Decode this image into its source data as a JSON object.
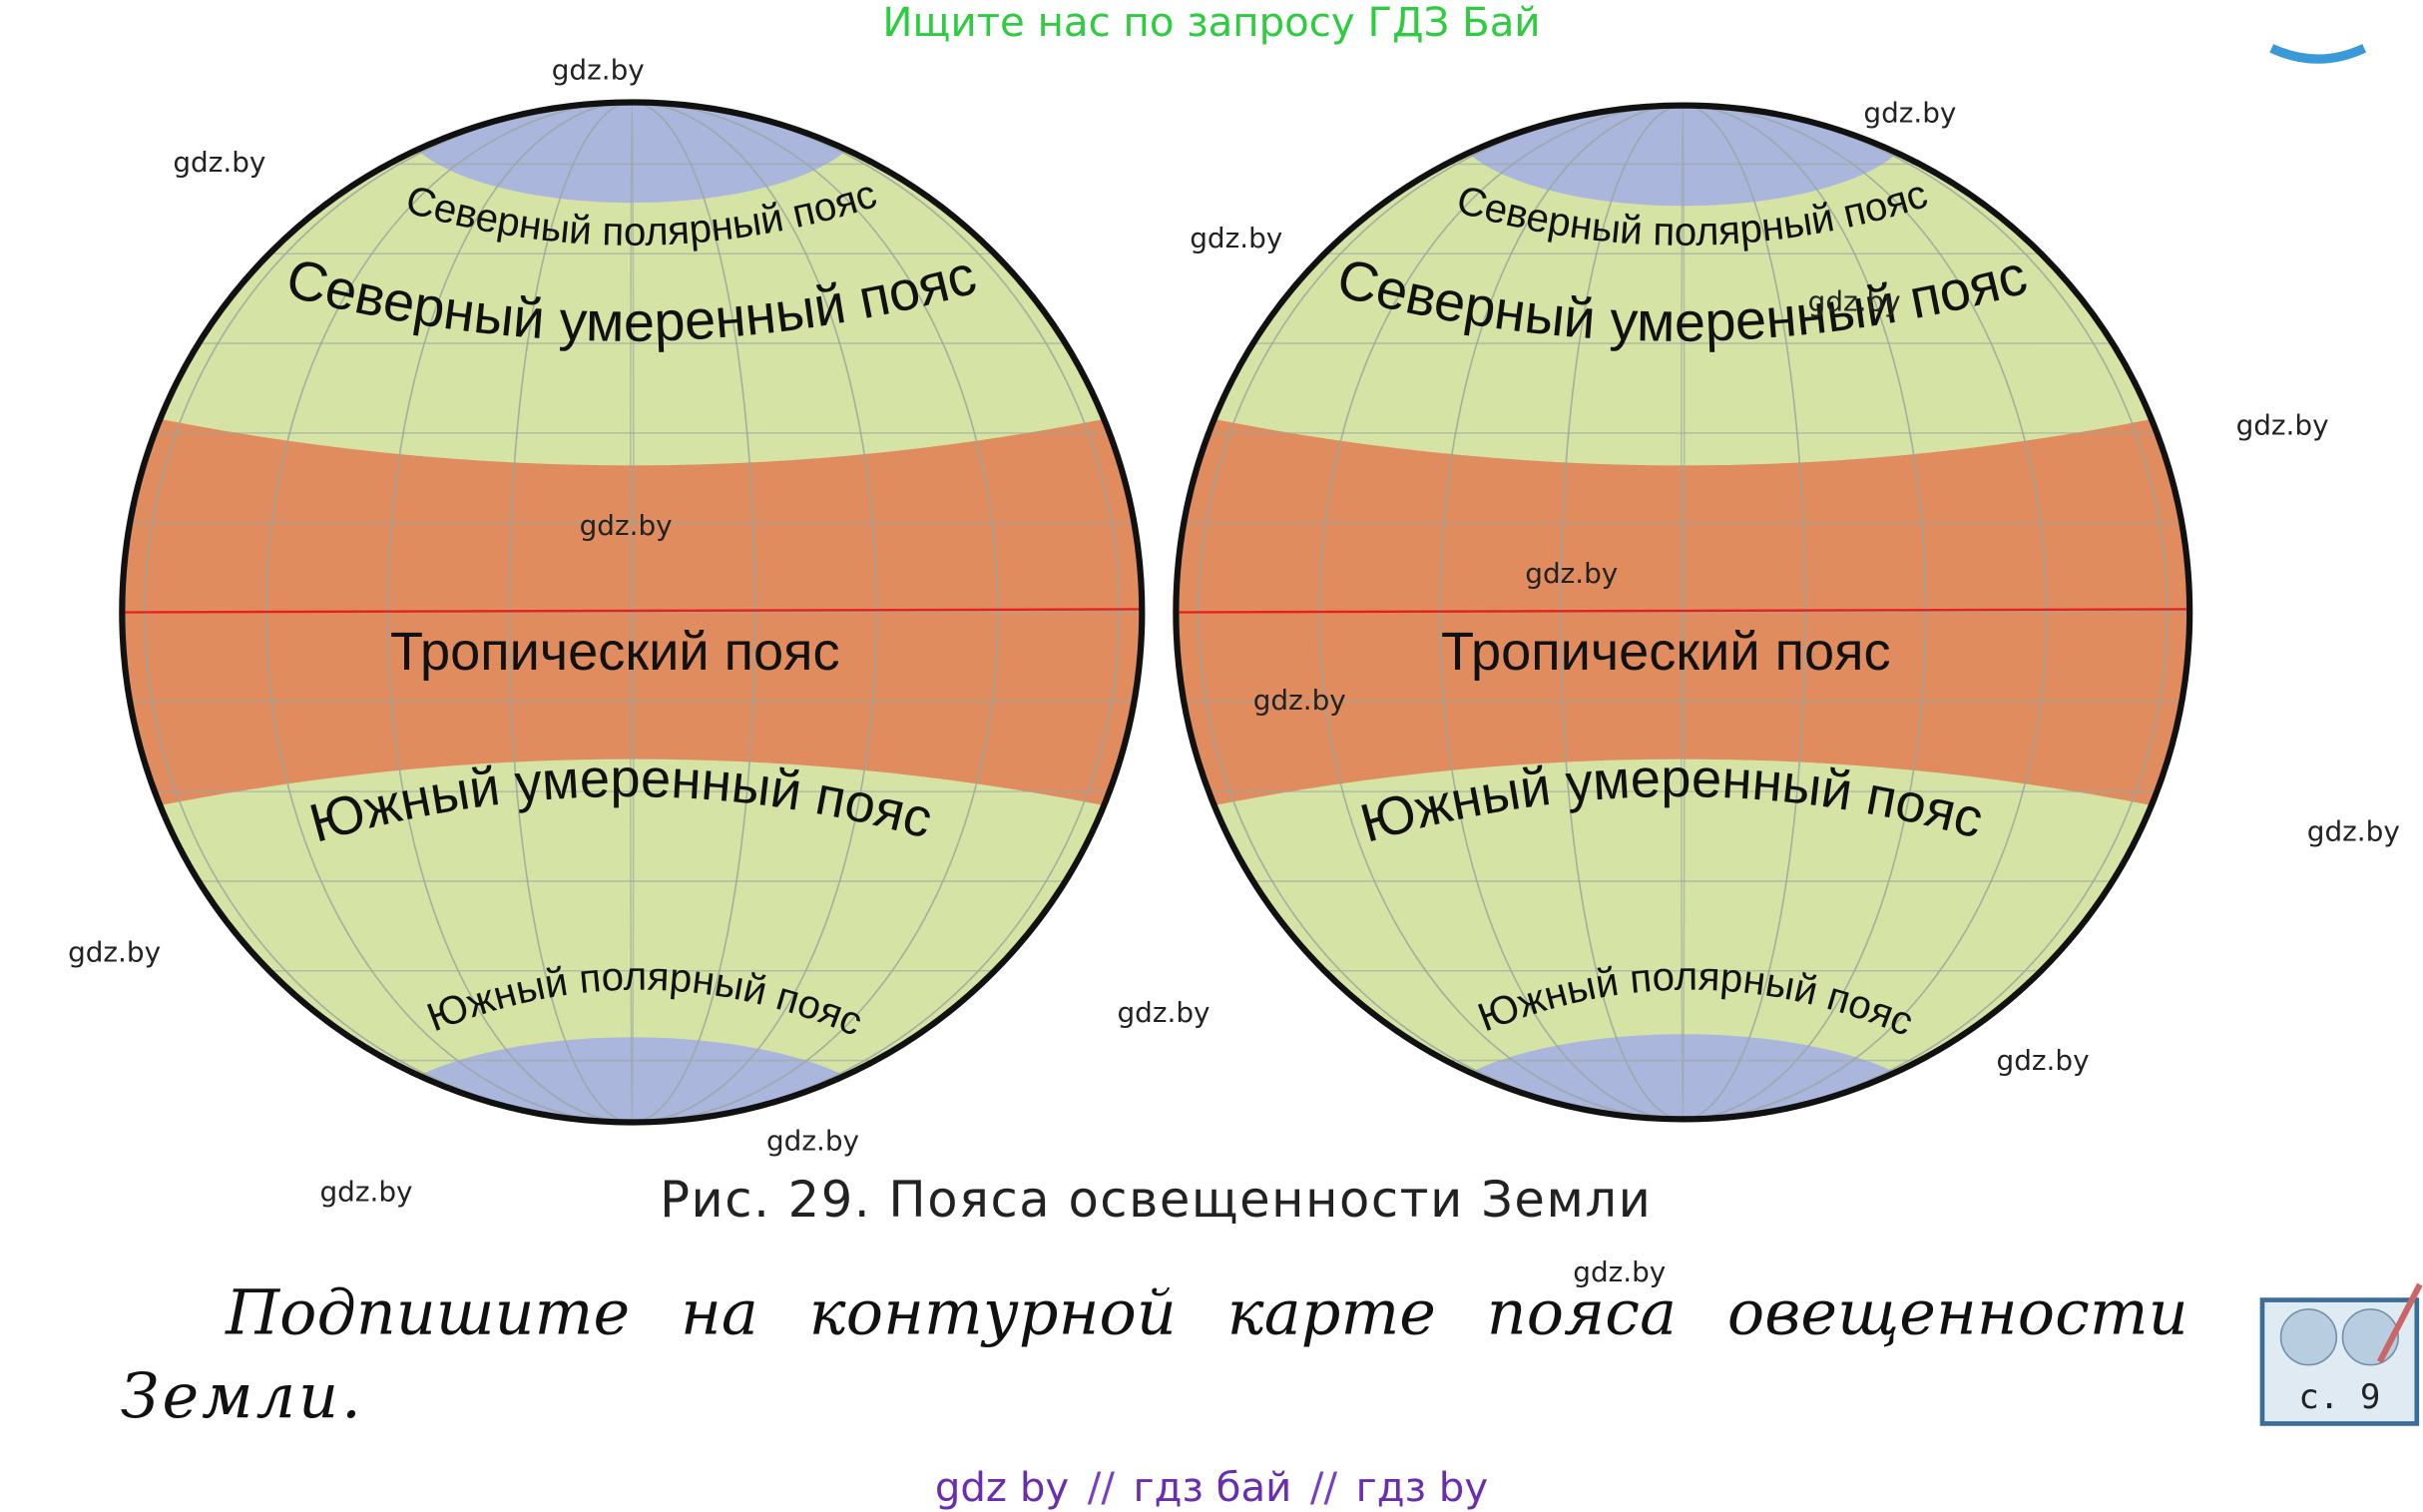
{
  "banner": "Ищите нас по запросу ГДЗ Бай",
  "figure": {
    "hemispheres": [
      {
        "zones": {
          "north_polar": "Северный полярный пояс",
          "north_temperate": "Северный умеренный пояс",
          "tropical": "Тропический пояс",
          "south_temperate": "Южный умеренный пояс",
          "south_polar": "Южный полярный пояс"
        }
      },
      {
        "zones": {
          "north_polar": "Северный полярный пояс",
          "north_temperate": "Северный умеренный пояс",
          "tropical": "Тропический пояс",
          "south_temperate": "Южный умеренный пояс",
          "south_polar": "Южный полярный пояс"
        }
      }
    ],
    "caption": "Рис. 29. Пояса освещенности Земли"
  },
  "task": {
    "line1": "Подпишите на контурной карте пояса овещенности",
    "line2": "Земли."
  },
  "page_icon": "с. 9",
  "watermarks": [
    "gdz.by",
    "gdz.by",
    "gdz.by",
    "gdz.by",
    "gdz.by",
    "gdz.by",
    "gdz.by",
    "gdz.by",
    "gdz.by",
    "gdz.by",
    "gdz.by",
    "gdz.by",
    "gdz.by",
    "gdz.by",
    "gdz.by",
    "gdz.by"
  ],
  "footer": {
    "links": [
      "gdz by",
      "гдз бай",
      "гдз by"
    ],
    "separator": "//"
  }
}
